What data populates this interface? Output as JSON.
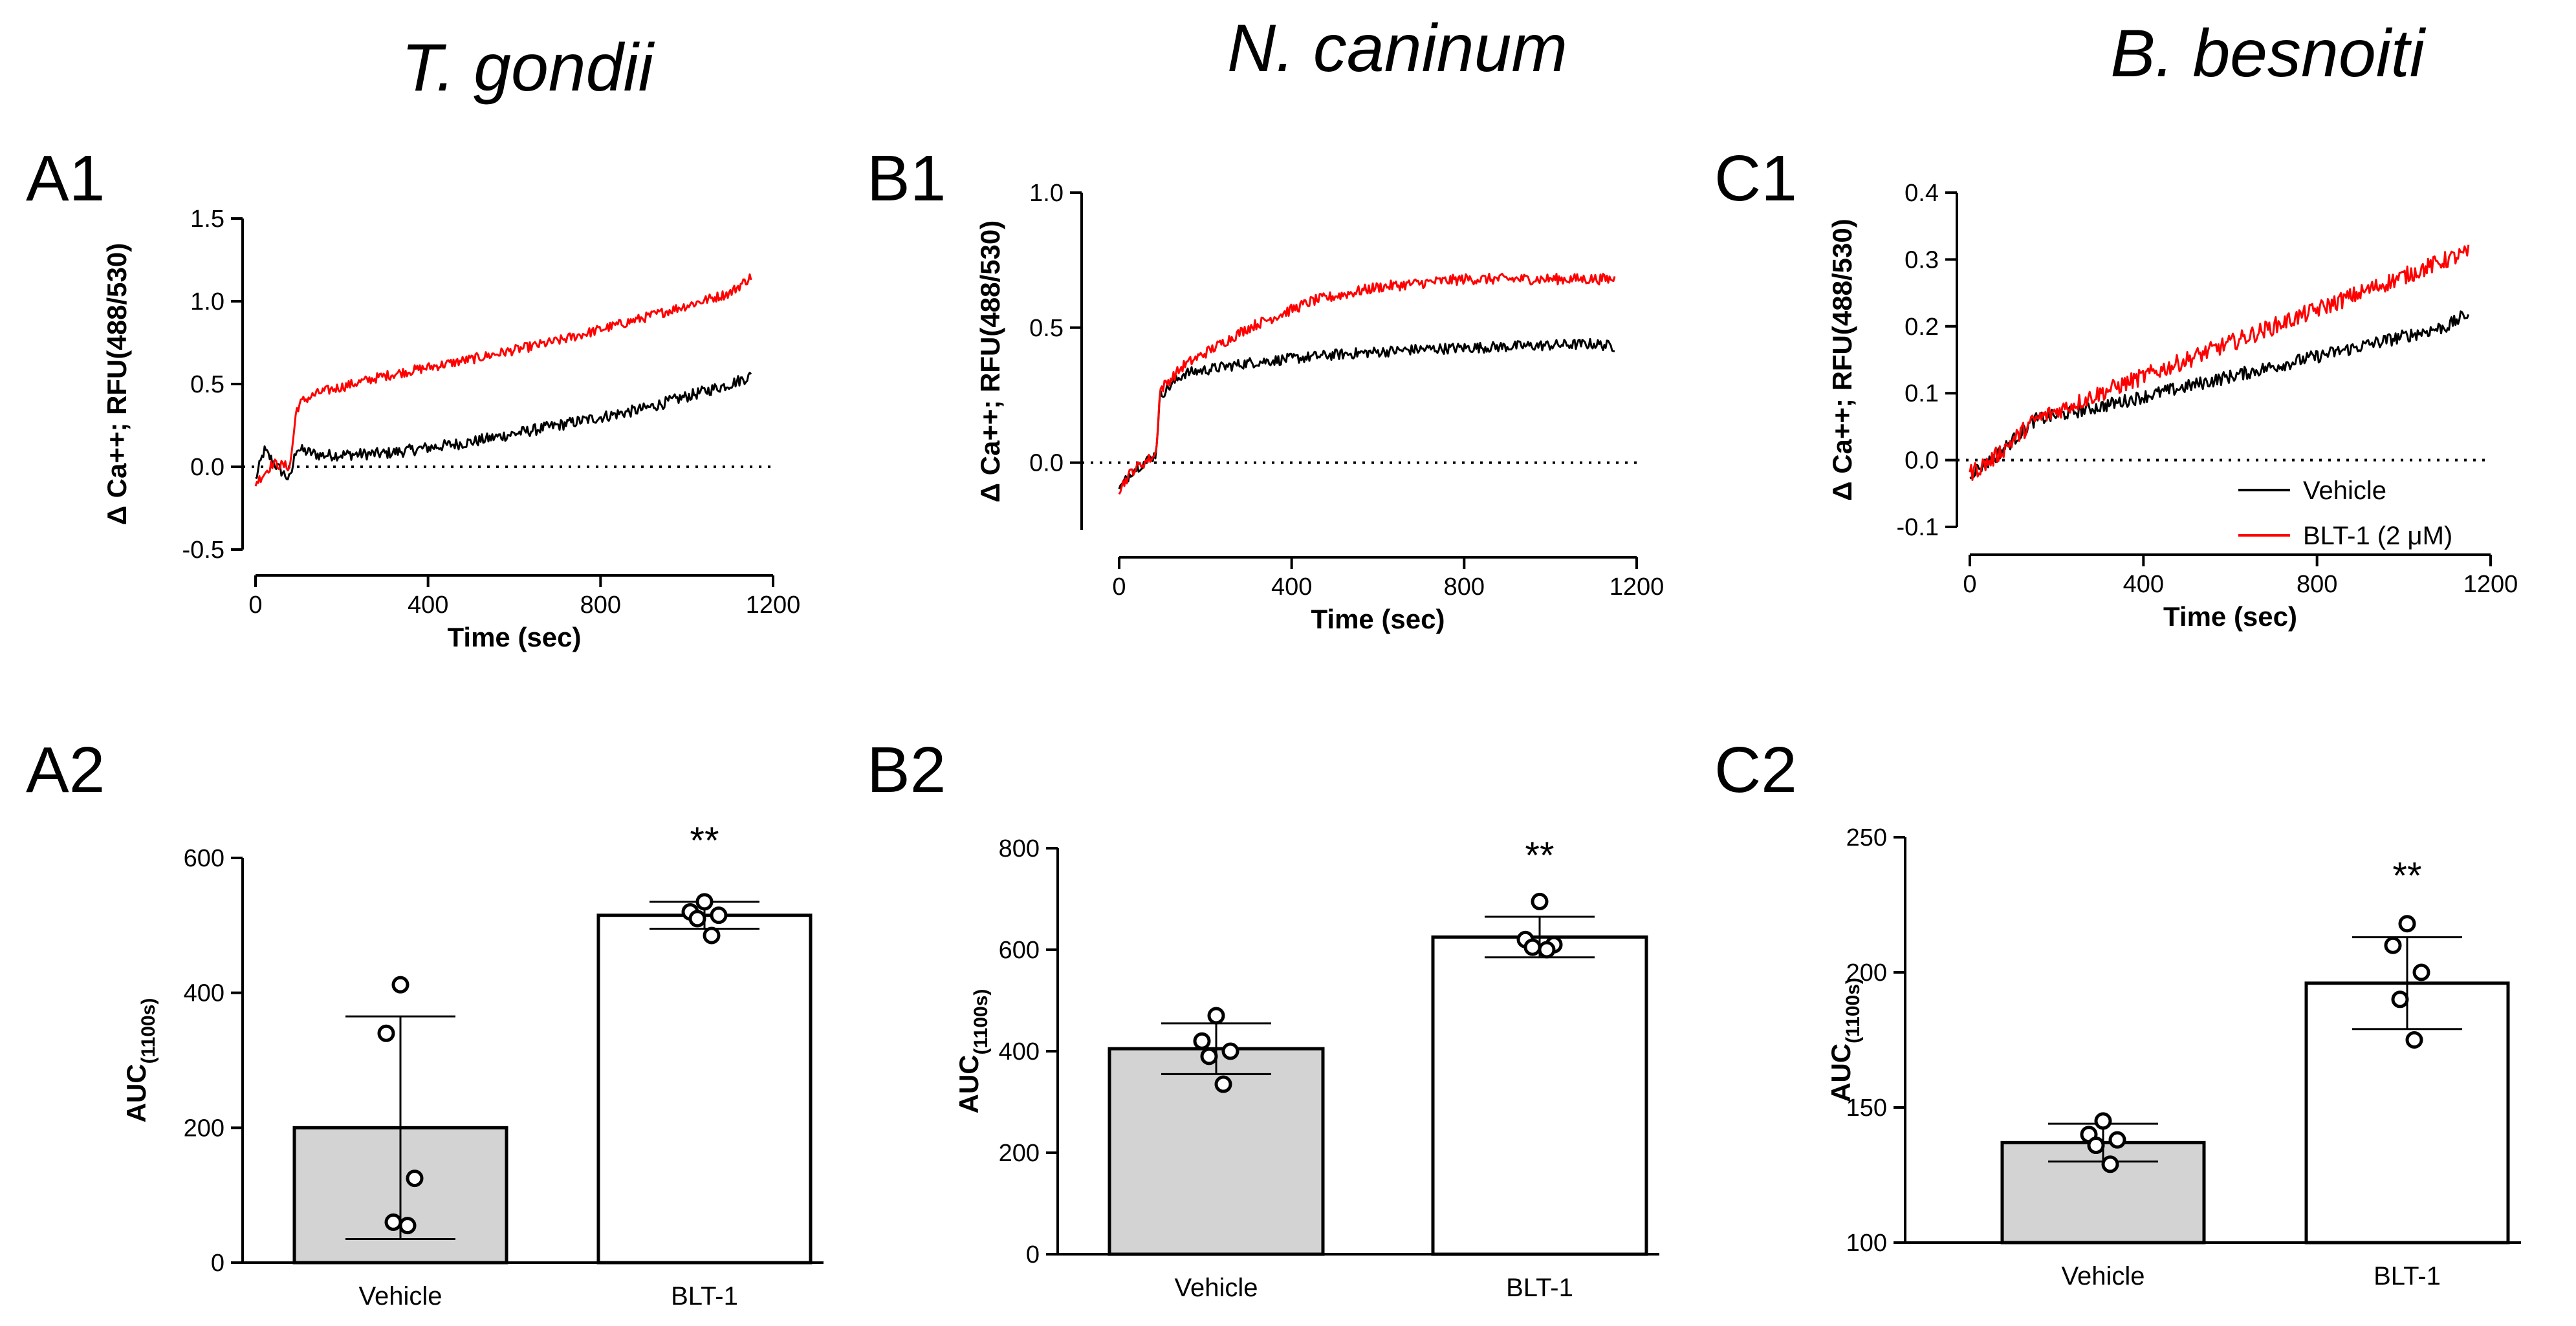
{
  "species": [
    "T. gondii",
    "N. caninum",
    "B. besnoiti"
  ],
  "panel_labels": [
    "A1",
    "B1",
    "C1",
    "A2",
    "B2",
    "C2"
  ],
  "legend": {
    "vehicle": "Vehicle",
    "blt": "BLT-1 (2 μM)"
  },
  "colors": {
    "vehicle": "#000000",
    "blt": "#ff0000",
    "vehicle_bar": "#d3d3d3",
    "blt_bar": "#ffffff"
  },
  "chart_data": [
    {
      "id": "A1",
      "type": "line",
      "title": "T. gondii",
      "xlabel": "Time (sec)",
      "ylabel": "Δ Ca++; RFU(488/530)",
      "xlim": [
        0,
        1200
      ],
      "ylim": [
        -0.5,
        1.5
      ],
      "xticks": [
        0,
        400,
        800,
        1200
      ],
      "xtick_labels": [
        "0",
        "400",
        "800",
        "1200"
      ],
      "yticks": [
        -0.5,
        0.0,
        0.5,
        1.0,
        1.5
      ],
      "ytick_labels": [
        "-0.5",
        "0.0",
        "0.5",
        "1.0",
        "1.5"
      ],
      "reference_line_y": 0,
      "series": [
        {
          "name": "Vehicle",
          "color": "#000000",
          "noise": 0.035,
          "x": [
            0,
            20,
            50,
            80,
            95,
            105,
            150,
            300,
            500,
            700,
            900,
            1100,
            1150
          ],
          "y": [
            -0.08,
            0.1,
            0.0,
            -0.08,
            0.12,
            0.1,
            0.07,
            0.08,
            0.15,
            0.25,
            0.35,
            0.5,
            0.55
          ]
        },
        {
          "name": "BLT-1 (2 μM)",
          "color": "#ff0000",
          "noise": 0.03,
          "x": [
            0,
            40,
            80,
            95,
            110,
            150,
            300,
            500,
            700,
            900,
            1100,
            1150
          ],
          "y": [
            -0.1,
            0.02,
            0.0,
            0.35,
            0.4,
            0.45,
            0.55,
            0.65,
            0.76,
            0.9,
            1.05,
            1.15
          ]
        }
      ]
    },
    {
      "id": "B1",
      "type": "line",
      "title": "N. caninum",
      "xlabel": "Time (sec)",
      "ylabel": "Δ Ca++; RFU(488/530)",
      "xlim": [
        0,
        1200
      ],
      "ylim": [
        -0.25,
        1.0
      ],
      "xticks": [
        0,
        400,
        800,
        1200
      ],
      "xtick_labels": [
        "0",
        "400",
        "800",
        "1200"
      ],
      "yticks": [
        0.0,
        0.5,
        1.0
      ],
      "ytick_labels": [
        "0.0",
        "0.5",
        "1.0"
      ],
      "reference_line_y": 0,
      "series": [
        {
          "name": "Vehicle",
          "color": "#000000",
          "noise": 0.02,
          "x": [
            0,
            30,
            85,
            95,
            150,
            300,
            500,
            700,
            900,
            1100,
            1150
          ],
          "y": [
            -0.1,
            -0.03,
            0.03,
            0.25,
            0.33,
            0.37,
            0.4,
            0.42,
            0.43,
            0.44,
            0.43
          ]
        },
        {
          "name": "BLT-1 (2 μM)",
          "color": "#ff0000",
          "noise": 0.02,
          "x": [
            0,
            30,
            85,
            95,
            150,
            300,
            450,
            600,
            800,
            1000,
            1150
          ],
          "y": [
            -0.1,
            -0.03,
            0.03,
            0.27,
            0.36,
            0.5,
            0.6,
            0.65,
            0.68,
            0.68,
            0.68
          ]
        }
      ]
    },
    {
      "id": "C1",
      "type": "line",
      "title": "B. besnoiti",
      "xlabel": "Time (sec)",
      "ylabel": "Δ Ca++; RFU(488/530)",
      "xlim": [
        0,
        1200
      ],
      "ylim": [
        -0.1,
        0.4
      ],
      "xticks": [
        0,
        400,
        800,
        1200
      ],
      "xtick_labels": [
        "0",
        "400",
        "800",
        "1200"
      ],
      "yticks": [
        -0.1,
        0.0,
        0.1,
        0.2,
        0.3,
        0.4
      ],
      "ytick_labels": [
        "-0.1",
        "0.0",
        "0.1",
        "0.2",
        "0.3",
        "0.4"
      ],
      "reference_line_y": 0,
      "legend_position": "bottom-right",
      "series": [
        {
          "name": "Vehicle",
          "color": "#000000",
          "noise": 0.01,
          "x": [
            0,
            50,
            100,
            150,
            300,
            500,
            700,
            900,
            1100,
            1150
          ],
          "y": [
            -0.02,
            0.0,
            0.03,
            0.06,
            0.08,
            0.11,
            0.14,
            0.17,
            0.2,
            0.22
          ]
        },
        {
          "name": "BLT-1 (2 μM)",
          "color": "#ff0000",
          "noise": 0.013,
          "x": [
            0,
            50,
            100,
            150,
            300,
            500,
            700,
            900,
            1100,
            1150
          ],
          "y": [
            -0.02,
            0.0,
            0.03,
            0.06,
            0.1,
            0.15,
            0.2,
            0.25,
            0.3,
            0.31
          ]
        }
      ]
    },
    {
      "id": "A2",
      "type": "bar",
      "ylabel": "AUC(1100s)",
      "ylim": [
        0,
        600
      ],
      "yticks": [
        0,
        200,
        400,
        600
      ],
      "ytick_labels": [
        "0",
        "200",
        "400",
        "600"
      ],
      "categories": [
        "Vehicle",
        "BLT-1"
      ],
      "values": [
        200,
        515
      ],
      "sd": [
        165,
        20
      ],
      "points": [
        [
          412,
          340,
          125,
          60,
          55
        ],
        [
          535,
          520,
          515,
          510,
          485
        ]
      ],
      "significance": "**"
    },
    {
      "id": "B2",
      "type": "bar",
      "ylabel": "AUC(1100s)",
      "ylim": [
        0,
        800
      ],
      "yticks": [
        0,
        200,
        400,
        600,
        800
      ],
      "ytick_labels": [
        "0",
        "200",
        "400",
        "600",
        "800"
      ],
      "categories": [
        "Vehicle",
        "BLT-1"
      ],
      "values": [
        405,
        625
      ],
      "sd": [
        50,
        40
      ],
      "points": [
        [
          470,
          420,
          400,
          390,
          335
        ],
        [
          695,
          620,
          610,
          605,
          600
        ]
      ],
      "significance": "**"
    },
    {
      "id": "C2",
      "type": "bar",
      "ylabel": "AUC(1100s)",
      "ylim": [
        100,
        250
      ],
      "yticks": [
        100,
        150,
        200,
        250
      ],
      "ytick_labels": [
        "100",
        "150",
        "200",
        "250"
      ],
      "categories": [
        "Vehicle",
        "BLT-1"
      ],
      "values": [
        137,
        196
      ],
      "sd": [
        7,
        17
      ],
      "points": [
        [
          145,
          140,
          138,
          136,
          129
        ],
        [
          218,
          210,
          200,
          190,
          175
        ]
      ],
      "significance": "**"
    }
  ]
}
